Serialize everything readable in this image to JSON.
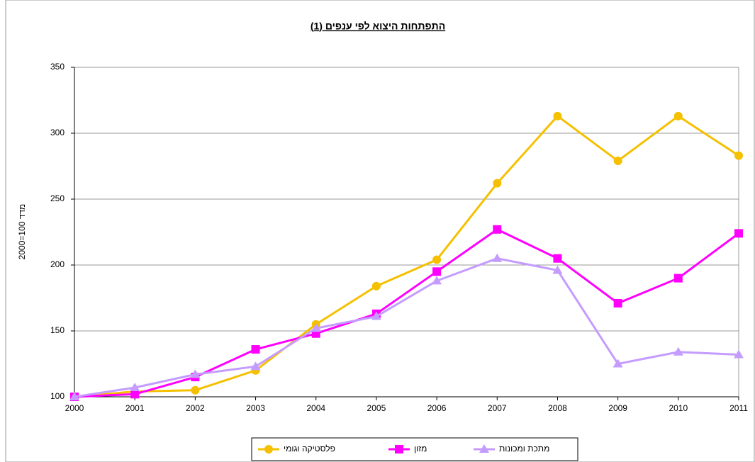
{
  "chart_data": {
    "type": "line",
    "title": "התפתחות היצוא לפי ענפים (1)",
    "y_label": "מדד 100=2000",
    "categories": [
      "2000",
      "2001",
      "2002",
      "2003",
      "2004",
      "2005",
      "2006",
      "2007",
      "2008",
      "2009",
      "2010",
      "2011"
    ],
    "series": [
      {
        "name": "פלסטיקה וגומי",
        "color": "#f5c000",
        "marker": "circle",
        "values": [
          100,
          104,
          105,
          120,
          155,
          184,
          204,
          262,
          313,
          279,
          313,
          283
        ]
      },
      {
        "name": "מזון",
        "color": "#ff00ff",
        "marker": "square",
        "values": [
          100,
          102,
          115,
          136,
          148,
          163,
          195,
          227,
          205,
          171,
          190,
          224
        ]
      },
      {
        "name": "מתכת ומכונות",
        "color": "#c49cff",
        "marker": "triangle",
        "values": [
          100,
          107,
          117,
          123,
          152,
          161,
          188,
          205,
          196,
          125,
          134,
          132
        ]
      }
    ],
    "ylim": [
      100,
      350
    ],
    "yticks": [
      100,
      150,
      200,
      250,
      300,
      350
    ],
    "grid": true,
    "legend": "bottom"
  }
}
